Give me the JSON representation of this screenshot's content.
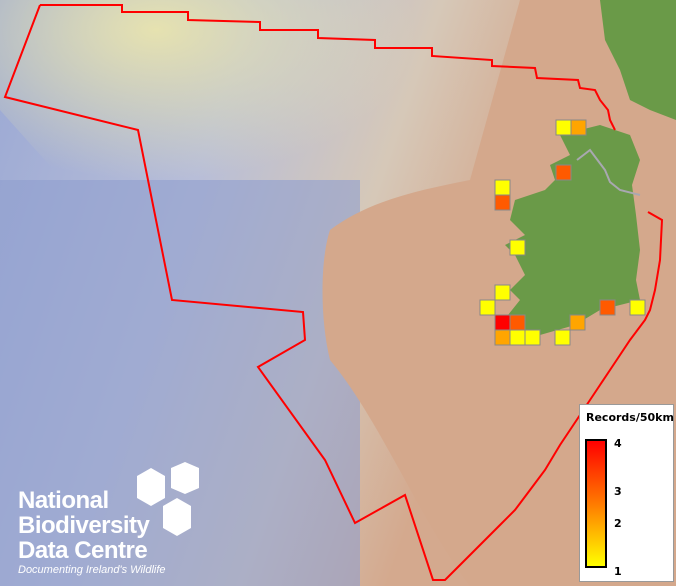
{
  "map": {
    "layer": "Records/50km",
    "cell_values": [
      1,
      2,
      3,
      1,
      3,
      1,
      1,
      1,
      3,
      1,
      4,
      3,
      2,
      2,
      1,
      1,
      1
    ],
    "colors": {
      "1": "#ffff00",
      "2": "#ffa500",
      "3": "#ff5a00",
      "4": "#ff0000",
      "boundary": "#ff0000",
      "land": "#6a9a48",
      "sea_shelf": "#d2a88c",
      "deep_sea": "#8f9fcc"
    }
  },
  "legend": {
    "title": "Records/50km",
    "ticks": [
      "4",
      "3",
      "2",
      "1"
    ],
    "min": 1,
    "max": 4
  },
  "logo": {
    "lines": [
      "National",
      "Biodiversity",
      "Data Centre"
    ],
    "tagline": "Documenting Ireland's Wildlife"
  }
}
